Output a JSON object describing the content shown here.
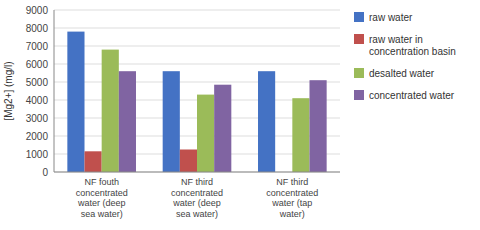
{
  "chart_data": {
    "type": "bar",
    "categories": [
      "NF fouth\nconcentrated\nwater (deep\nsea water)",
      "NF third\nconcentrated\nwater (deep\nsea water)",
      "NF third\nconcentrated\nwater (tap\nwater)"
    ],
    "series": [
      {
        "name": "raw water",
        "color": "#4472C4",
        "values": [
          7800,
          5600,
          5600
        ]
      },
      {
        "name": "raw water in\nconcentration basin",
        "color": "#C0504D",
        "values": [
          1150,
          1250,
          0
        ]
      },
      {
        "name": "desalted water",
        "color": "#9BBB59",
        "values": [
          6800,
          4300,
          4100
        ]
      },
      {
        "name": "concentrated water",
        "color": "#8064A2",
        "values": [
          5600,
          4850,
          5100
        ]
      }
    ],
    "y_label": "[Mg2+]  (mg/l)",
    "ylim": [
      0,
      9000
    ],
    "yticks": [
      0,
      1000,
      2000,
      3000,
      4000,
      5000,
      6000,
      7000,
      8000,
      9000
    ],
    "grid": true,
    "legend": "right"
  }
}
